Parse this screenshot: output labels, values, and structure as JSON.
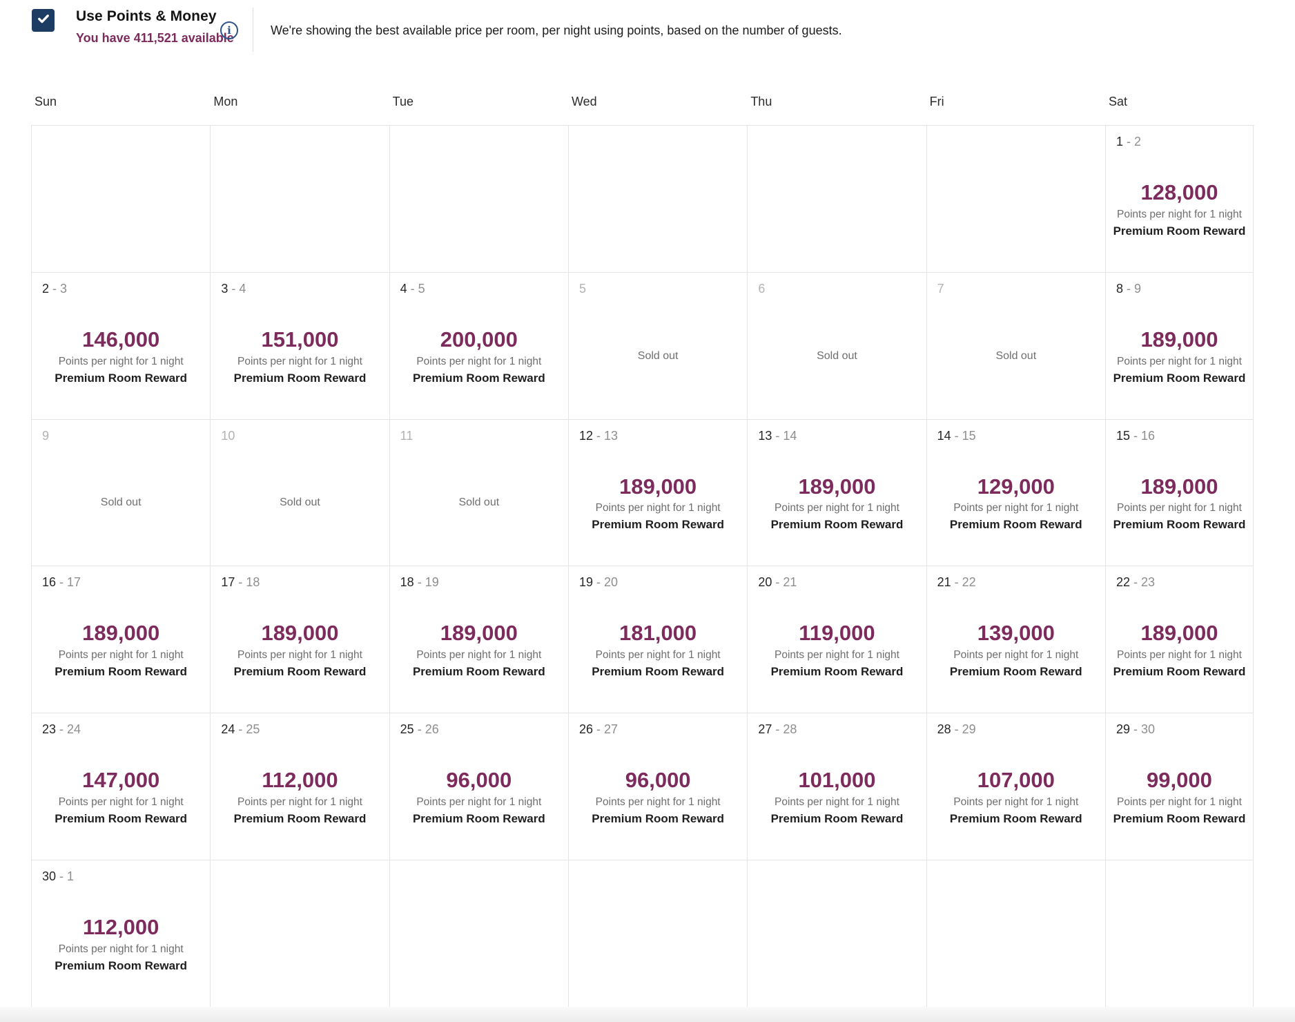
{
  "header": {
    "title": "Use Points & Money",
    "checkbox_checked": true,
    "subtitle": "You have 411,521 available",
    "description": "We're showing the best available price per room, per night using points, based on the number of guests."
  },
  "calendar": {
    "day_headers": [
      "Sun",
      "Mon",
      "Tue",
      "Wed",
      "Thu",
      "Fri",
      "Sat"
    ],
    "date_separator": "-",
    "points_caption": "Points per night for 1 night",
    "reward_label": "Premium Room Reward",
    "sold_out_label": "Sold out",
    "weeks": [
      [
        {
          "type": "empty"
        },
        {
          "type": "empty"
        },
        {
          "type": "empty"
        },
        {
          "type": "empty"
        },
        {
          "type": "empty"
        },
        {
          "type": "empty"
        },
        {
          "type": "price",
          "start": "1",
          "end": "2",
          "points": "128,000"
        }
      ],
      [
        {
          "type": "price",
          "start": "2",
          "end": "3",
          "points": "146,000"
        },
        {
          "type": "price",
          "start": "3",
          "end": "4",
          "points": "151,000"
        },
        {
          "type": "price",
          "start": "4",
          "end": "5",
          "points": "200,000"
        },
        {
          "type": "soldout",
          "date": "5"
        },
        {
          "type": "soldout",
          "date": "6"
        },
        {
          "type": "soldout",
          "date": "7"
        },
        {
          "type": "price",
          "start": "8",
          "end": "9",
          "points": "189,000"
        }
      ],
      [
        {
          "type": "soldout",
          "date": "9"
        },
        {
          "type": "soldout",
          "date": "10"
        },
        {
          "type": "soldout",
          "date": "11"
        },
        {
          "type": "price",
          "start": "12",
          "end": "13",
          "points": "189,000"
        },
        {
          "type": "price",
          "start": "13",
          "end": "14",
          "points": "189,000"
        },
        {
          "type": "price",
          "start": "14",
          "end": "15",
          "points": "129,000"
        },
        {
          "type": "price",
          "start": "15",
          "end": "16",
          "points": "189,000"
        }
      ],
      [
        {
          "type": "price",
          "start": "16",
          "end": "17",
          "points": "189,000"
        },
        {
          "type": "price",
          "start": "17",
          "end": "18",
          "points": "189,000"
        },
        {
          "type": "price",
          "start": "18",
          "end": "19",
          "points": "189,000"
        },
        {
          "type": "price",
          "start": "19",
          "end": "20",
          "points": "181,000"
        },
        {
          "type": "price",
          "start": "20",
          "end": "21",
          "points": "119,000"
        },
        {
          "type": "price",
          "start": "21",
          "end": "22",
          "points": "139,000"
        },
        {
          "type": "price",
          "start": "22",
          "end": "23",
          "points": "189,000"
        }
      ],
      [
        {
          "type": "price",
          "start": "23",
          "end": "24",
          "points": "147,000"
        },
        {
          "type": "price",
          "start": "24",
          "end": "25",
          "points": "112,000"
        },
        {
          "type": "price",
          "start": "25",
          "end": "26",
          "points": "96,000"
        },
        {
          "type": "price",
          "start": "26",
          "end": "27",
          "points": "96,000"
        },
        {
          "type": "price",
          "start": "27",
          "end": "28",
          "points": "101,000"
        },
        {
          "type": "price",
          "start": "28",
          "end": "29",
          "points": "107,000"
        },
        {
          "type": "price",
          "start": "29",
          "end": "30",
          "points": "99,000"
        }
      ],
      [
        {
          "type": "price",
          "start": "30",
          "end": "1",
          "points": "112,000"
        },
        {
          "type": "empty"
        },
        {
          "type": "empty"
        },
        {
          "type": "empty"
        },
        {
          "type": "empty"
        },
        {
          "type": "empty"
        },
        {
          "type": "empty"
        }
      ]
    ]
  },
  "colors": {
    "accent_maroon": "#7d2b5c",
    "checkbox_navy": "#1d3c64",
    "info_blue": "#2d5387",
    "grid_border": "#e4e4e4"
  }
}
